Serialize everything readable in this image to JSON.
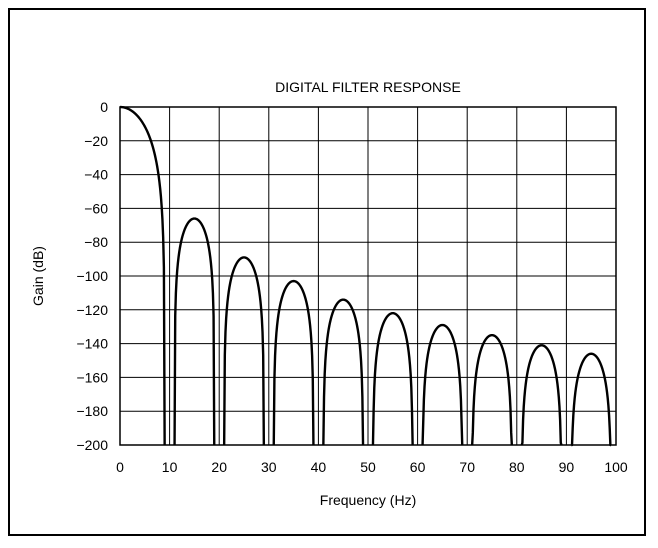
{
  "chart_data": {
    "type": "line",
    "title": "DIGITAL FILTER RESPONSE",
    "xlabel": "Frequency (Hz)",
    "ylabel": "Gain (dB)",
    "xlim": [
      0,
      100
    ],
    "ylim": [
      -200,
      0
    ],
    "grid": true,
    "x_ticks": [
      "0",
      "10",
      "20",
      "30",
      "40",
      "50",
      "60",
      "70",
      "80",
      "90",
      "100"
    ],
    "y_ticks": [
      "0",
      "−20",
      "−40",
      "−60",
      "−80",
      "−100",
      "−120",
      "−140",
      "−160",
      "−180",
      "−200"
    ],
    "series": [
      {
        "lobes": [
          {
            "x_start": 0,
            "x_end": 9,
            "peak_x": 0,
            "peak_db": 0
          },
          {
            "x_start": 11,
            "x_end": 19,
            "peak_x": 14.5,
            "peak_db": -66
          },
          {
            "x_start": 21,
            "x_end": 29,
            "peak_x": 25,
            "peak_db": -89
          },
          {
            "x_start": 31,
            "x_end": 39,
            "peak_x": 35,
            "peak_db": -103
          },
          {
            "x_start": 41,
            "x_end": 49,
            "peak_x": 45,
            "peak_db": -114
          },
          {
            "x_start": 51,
            "x_end": 59,
            "peak_x": 55,
            "peak_db": -122
          },
          {
            "x_start": 61,
            "x_end": 69,
            "peak_x": 65,
            "peak_db": -129
          },
          {
            "x_start": 71,
            "x_end": 79,
            "peak_x": 75,
            "peak_db": -135
          },
          {
            "x_start": 81,
            "x_end": 89,
            "peak_x": 85,
            "peak_db": -141
          },
          {
            "x_start": 91,
            "x_end": 99,
            "peak_x": 95,
            "peak_db": -146
          }
        ]
      }
    ]
  }
}
